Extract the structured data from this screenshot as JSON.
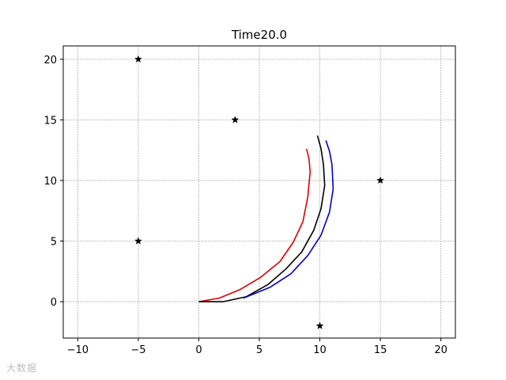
{
  "chart_data": {
    "type": "line",
    "title": "Time20.0",
    "xlabel": "",
    "ylabel": "",
    "xlim": [
      -11.2,
      21.2
    ],
    "ylim": [
      -3.0,
      21.1
    ],
    "xticks": [
      -10,
      -5,
      0,
      5,
      10,
      15,
      20
    ],
    "yticks": [
      0,
      5,
      10,
      15,
      20
    ],
    "grid": true,
    "series": [
      {
        "color": "#dd0000",
        "x": [
          0,
          1.7,
          3.4,
          5.1,
          6.7,
          7.8,
          8.6,
          9.0,
          9.2,
          9.1,
          8.9
        ],
        "y": [
          0,
          0.3,
          1.0,
          2.0,
          3.3,
          4.9,
          6.6,
          8.6,
          10.7,
          11.8,
          12.6
        ]
      },
      {
        "color": "#000000",
        "x": [
          0,
          2.0,
          3.9,
          5.7,
          7.2,
          8.5,
          9.5,
          10.1,
          10.4,
          10.3,
          10.1,
          9.8
        ],
        "y": [
          0,
          0.0,
          0.4,
          1.4,
          2.7,
          4.1,
          5.9,
          7.7,
          9.6,
          11.3,
          12.6,
          13.7
        ]
      },
      {
        "color": "#0000cc",
        "x": [
          3.7,
          5.9,
          7.6,
          9.0,
          10.1,
          10.8,
          11.1,
          11.0,
          10.8,
          10.5
        ],
        "y": [
          0.3,
          1.2,
          2.3,
          3.8,
          5.5,
          7.4,
          9.3,
          11.3,
          12.4,
          13.3
        ]
      }
    ],
    "markers": {
      "symbol": "star",
      "color": "#000000",
      "points": [
        {
          "x": -5,
          "y": 20
        },
        {
          "x": 3,
          "y": 15
        },
        {
          "x": 15,
          "y": 10
        },
        {
          "x": -5,
          "y": 5
        },
        {
          "x": 10,
          "y": -2
        }
      ]
    }
  },
  "watermark": "大数据"
}
